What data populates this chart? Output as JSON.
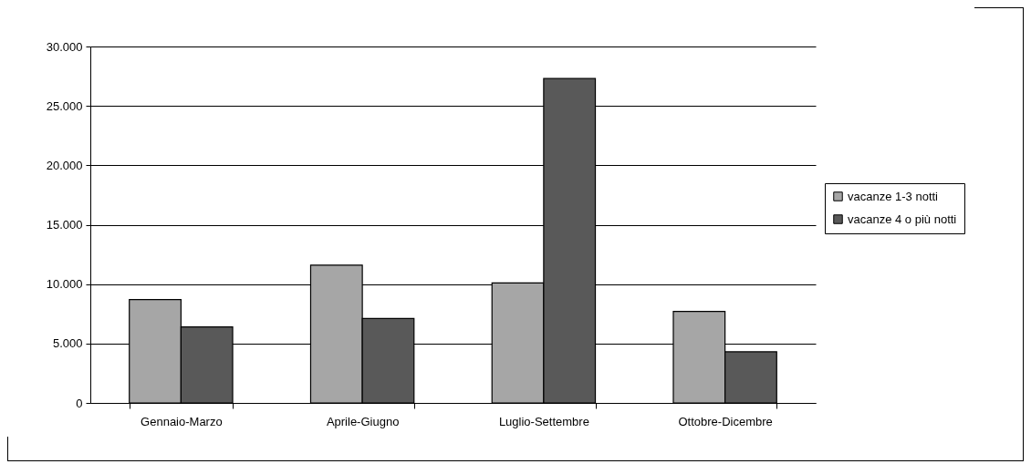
{
  "chart_data": {
    "type": "bar",
    "categories": [
      "Gennaio-Marzo",
      "Aprile-Giugno",
      "Luglio-Settembre",
      "Ottobre-Dicembre"
    ],
    "series": [
      {
        "name": "vacanze 1-3 notti",
        "color": "#a6a6a6",
        "values": [
          8700,
          11600,
          10100,
          7700
        ]
      },
      {
        "name": "vacanze 4 o più notti",
        "color": "#595959",
        "values": [
          6400,
          7100,
          27300,
          4300
        ]
      }
    ],
    "ylim": [
      0,
      30000
    ],
    "yticks": [
      {
        "value": 0,
        "label": "0"
      },
      {
        "value": 5000,
        "label": "5.000"
      },
      {
        "value": 10000,
        "label": "10.000"
      },
      {
        "value": 15000,
        "label": "15.000"
      },
      {
        "value": 20000,
        "label": "20.000"
      },
      {
        "value": 25000,
        "label": "25.000"
      },
      {
        "value": 30000,
        "label": "30.000"
      }
    ],
    "grid": "y",
    "legend": "right"
  }
}
